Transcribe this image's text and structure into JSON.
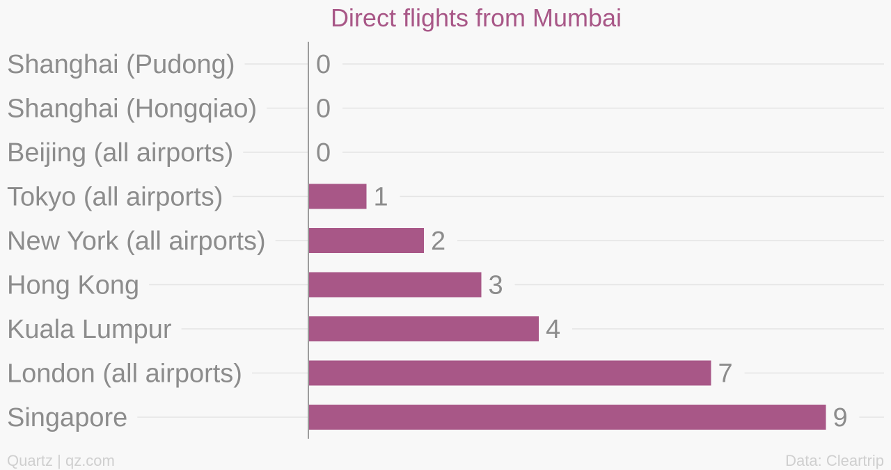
{
  "colors": {
    "background": "#f8f8f8",
    "bar": "#a85787",
    "title": "#a85787",
    "label": "#8c8c8c",
    "grid": "#e4e4e4",
    "axis": "#9c9c9c",
    "footer": "#cfcfcf"
  },
  "footer": {
    "source_left": "Quartz | qz.com",
    "source_right": "Data: Cleartrip"
  },
  "chart_data": {
    "type": "bar",
    "orientation": "horizontal",
    "title": "Direct flights from Mumbai",
    "categories": [
      "Shanghai (Pudong)",
      "Shanghai (Hongqiao)",
      "Beijing (all airports)",
      "Tokyo (all airports)",
      "New York (all airports)",
      "Hong Kong",
      "Kuala Lumpur",
      "London (all airports)",
      "Singapore"
    ],
    "values": [
      0,
      0,
      0,
      1,
      2,
      3,
      4,
      7,
      9
    ],
    "xlim": [
      0,
      10
    ],
    "grid": true,
    "legend": "none"
  }
}
